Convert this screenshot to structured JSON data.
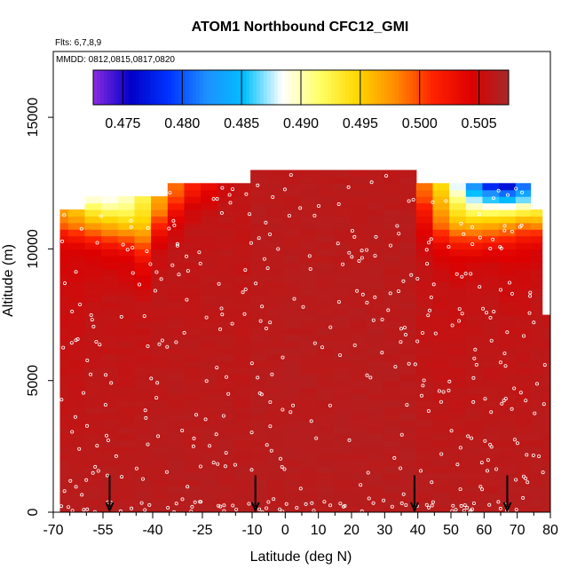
{
  "chart_data": {
    "type": "heatmap",
    "title": "ATOM1 Northbound CFC12_GMI",
    "notes": [
      "Flts: 6,7,8,9",
      "MMDD: 0812,0815,0817,0820"
    ],
    "xlabel": "Latitude (deg N)",
    "ylabel": "Altitude (m)",
    "xlim": [
      -70,
      80
    ],
    "ylim": [
      0,
      17500
    ],
    "x_ticks": [
      -70,
      -55,
      -40,
      -25,
      -10,
      0,
      10,
      20,
      30,
      40,
      50,
      60,
      70,
      80
    ],
    "x_tick_labels": [
      "-70",
      "-55",
      "-40",
      "-25",
      "-10",
      "0",
      "10",
      "20",
      "30",
      "40",
      "50",
      "60",
      "70",
      "80"
    ],
    "x_minor_ticks": [
      -65,
      -60,
      -50,
      -45,
      -35,
      -30,
      -20,
      -15,
      -5,
      5,
      15,
      25,
      35,
      45,
      55,
      65,
      75
    ],
    "y_ticks": [
      0,
      5000,
      10000,
      15000
    ],
    "y_tick_labels": [
      "0",
      "5000",
      "10000",
      "15000"
    ],
    "colorbar": {
      "range": [
        0.4725,
        0.5075
      ],
      "ticks": [
        0.475,
        0.48,
        0.485,
        0.49,
        0.495,
        0.5,
        0.505
      ],
      "tick_labels": [
        "0.475",
        "0.480",
        "0.485",
        "0.490",
        "0.495",
        "0.500",
        "0.505"
      ],
      "colors": [
        "#8a2be2",
        "#0000c8",
        "#0033ff",
        "#1e90ff",
        "#00bfff",
        "#ffffff",
        "#ffff66",
        "#ffd700",
        "#ff8c00",
        "#ff2200",
        "#dd0000",
        "#a52a2a"
      ]
    },
    "background_value": 0.5065,
    "columns": [
      {
        "lat": -68,
        "top": 11500,
        "profile": [
          [
            0,
            0.5065
          ],
          [
            7500,
            0.5055
          ],
          [
            9000,
            0.505
          ],
          [
            10000,
            0.5045
          ],
          [
            10600,
            0.502
          ],
          [
            11000,
            0.4985
          ],
          [
            11500,
            0.497
          ]
        ]
      },
      {
        "lat": -63,
        "top": 11500,
        "profile": [
          [
            0,
            0.5065
          ],
          [
            7500,
            0.5055
          ],
          [
            9200,
            0.505
          ],
          [
            10000,
            0.5045
          ],
          [
            10600,
            0.501
          ],
          [
            11000,
            0.4975
          ],
          [
            11500,
            0.4955
          ]
        ]
      },
      {
        "lat": -58,
        "top": 12000,
        "profile": [
          [
            0,
            0.5065
          ],
          [
            7500,
            0.5058
          ],
          [
            9200,
            0.505
          ],
          [
            10000,
            0.504
          ],
          [
            10500,
            0.5005
          ],
          [
            11000,
            0.4965
          ],
          [
            11500,
            0.4925
          ],
          [
            12000,
            0.4885
          ]
        ]
      },
      {
        "lat": -53,
        "top": 12000,
        "profile": [
          [
            0,
            0.5065
          ],
          [
            8000,
            0.5058
          ],
          [
            9200,
            0.505
          ],
          [
            10000,
            0.5035
          ],
          [
            10500,
            0.4995
          ],
          [
            11000,
            0.4955
          ],
          [
            11500,
            0.4915
          ],
          [
            12000,
            0.488
          ]
        ]
      },
      {
        "lat": -48,
        "top": 12000,
        "profile": [
          [
            0,
            0.5065
          ],
          [
            8000,
            0.5058
          ],
          [
            9500,
            0.5045
          ],
          [
            10000,
            0.503
          ],
          [
            10500,
            0.4985
          ],
          [
            11000,
            0.495
          ],
          [
            11500,
            0.4915
          ],
          [
            12000,
            0.4895
          ]
        ]
      },
      {
        "lat": -43,
        "top": 12000,
        "profile": [
          [
            0,
            0.5065
          ],
          [
            8000,
            0.5058
          ],
          [
            9500,
            0.5035
          ],
          [
            10000,
            0.5005
          ],
          [
            10500,
            0.4975
          ],
          [
            11000,
            0.495
          ],
          [
            11500,
            0.4935
          ],
          [
            12000,
            0.4925
          ]
        ]
      },
      {
        "lat": -38,
        "top": 12000,
        "profile": [
          [
            0,
            0.5065
          ],
          [
            9000,
            0.506
          ],
          [
            10000,
            0.505
          ],
          [
            10500,
            0.5035
          ],
          [
            11000,
            0.5005
          ],
          [
            11500,
            0.498
          ],
          [
            12000,
            0.497
          ]
        ]
      },
      {
        "lat": -33,
        "top": 12500,
        "profile": [
          [
            0,
            0.5065
          ],
          [
            10000,
            0.506
          ],
          [
            11000,
            0.5045
          ],
          [
            11500,
            0.5025
          ],
          [
            12000,
            0.5
          ],
          [
            12500,
            0.4985
          ]
        ]
      },
      {
        "lat": -28,
        "top": 12500,
        "profile": [
          [
            0,
            0.5065
          ],
          [
            10500,
            0.506
          ],
          [
            11500,
            0.505
          ],
          [
            12000,
            0.503
          ],
          [
            12500,
            0.501
          ]
        ]
      },
      {
        "lat": -23,
        "top": 12500,
        "profile": [
          [
            0,
            0.5065
          ],
          [
            11000,
            0.506
          ],
          [
            12000,
            0.5045
          ],
          [
            12500,
            0.503
          ]
        ]
      },
      {
        "lat": -18,
        "top": 12500,
        "profile": [
          [
            0,
            0.5065
          ],
          [
            11500,
            0.506
          ],
          [
            12500,
            0.505
          ]
        ]
      },
      {
        "lat": -13,
        "top": 12500,
        "profile": [
          [
            0,
            0.5065
          ],
          [
            12500,
            0.5058
          ]
        ]
      },
      {
        "lat": -8,
        "top": 13000,
        "profile": [
          [
            0,
            0.5065
          ],
          [
            13000,
            0.5063
          ]
        ]
      },
      {
        "lat": -3,
        "top": 13000,
        "profile": [
          [
            0,
            0.5065
          ],
          [
            13000,
            0.5063
          ]
        ]
      },
      {
        "lat": 2,
        "top": 13000,
        "profile": [
          [
            0,
            0.5065
          ],
          [
            13000,
            0.5063
          ]
        ]
      },
      {
        "lat": 7,
        "top": 13000,
        "profile": [
          [
            0,
            0.5065
          ],
          [
            13000,
            0.5063
          ]
        ]
      },
      {
        "lat": 12,
        "top": 13000,
        "profile": [
          [
            0,
            0.5065
          ],
          [
            13000,
            0.5063
          ]
        ]
      },
      {
        "lat": 17,
        "top": 13000,
        "profile": [
          [
            0,
            0.5065
          ],
          [
            13000,
            0.5063
          ]
        ]
      },
      {
        "lat": 22,
        "top": 13000,
        "profile": [
          [
            0,
            0.5065
          ],
          [
            13000,
            0.5063
          ]
        ]
      },
      {
        "lat": 27,
        "top": 13000,
        "profile": [
          [
            0,
            0.5065
          ],
          [
            13000,
            0.5063
          ]
        ]
      },
      {
        "lat": 32,
        "top": 13000,
        "profile": [
          [
            0,
            0.5065
          ],
          [
            13000,
            0.5063
          ]
        ]
      },
      {
        "lat": 37,
        "top": 13000,
        "profile": [
          [
            0,
            0.5065
          ],
          [
            13000,
            0.5063
          ]
        ]
      },
      {
        "lat": 42,
        "top": 12500,
        "profile": [
          [
            0,
            0.5065
          ],
          [
            9500,
            0.5058
          ],
          [
            10500,
            0.5045
          ],
          [
            11500,
            0.502
          ],
          [
            12000,
            0.4995
          ],
          [
            12500,
            0.4985
          ]
        ]
      },
      {
        "lat": 47,
        "top": 12500,
        "profile": [
          [
            0,
            0.5065
          ],
          [
            9000,
            0.5055
          ],
          [
            10000,
            0.504
          ],
          [
            10500,
            0.5015
          ],
          [
            11000,
            0.4985
          ],
          [
            11500,
            0.497
          ],
          [
            12000,
            0.4955
          ],
          [
            12500,
            0.494
          ]
        ]
      },
      {
        "lat": 52,
        "top": 12500,
        "profile": [
          [
            0,
            0.5065
          ],
          [
            8500,
            0.5055
          ],
          [
            9500,
            0.5045
          ],
          [
            10000,
            0.503
          ],
          [
            10500,
            0.4995
          ],
          [
            11000,
            0.496
          ],
          [
            11500,
            0.4935
          ],
          [
            12000,
            0.4905
          ],
          [
            12500,
            0.4875
          ]
        ]
      },
      {
        "lat": 57,
        "top": 12500,
        "profile": [
          [
            0,
            0.5065
          ],
          [
            8000,
            0.5058
          ],
          [
            9500,
            0.505
          ],
          [
            10000,
            0.503
          ],
          [
            10500,
            0.4995
          ],
          [
            11000,
            0.4955
          ],
          [
            11500,
            0.491
          ],
          [
            12000,
            0.4865
          ],
          [
            12500,
            0.4815
          ]
        ]
      },
      {
        "lat": 62,
        "top": 12500,
        "profile": [
          [
            0,
            0.5065
          ],
          [
            8000,
            0.5058
          ],
          [
            9500,
            0.505
          ],
          [
            10000,
            0.5035
          ],
          [
            10500,
            0.5
          ],
          [
            11000,
            0.496
          ],
          [
            11500,
            0.4905
          ],
          [
            12000,
            0.484
          ],
          [
            12500,
            0.4765
          ]
        ]
      },
      {
        "lat": 67,
        "top": 12500,
        "profile": [
          [
            0,
            0.5065
          ],
          [
            7500,
            0.5058
          ],
          [
            9200,
            0.505
          ],
          [
            10000,
            0.5035
          ],
          [
            10500,
            0.5005
          ],
          [
            11000,
            0.4965
          ],
          [
            11500,
            0.4905
          ],
          [
            12000,
            0.483
          ],
          [
            12500,
            0.4745
          ]
        ]
      },
      {
        "lat": 72,
        "top": 12500,
        "profile": [
          [
            0,
            0.5065
          ],
          [
            7500,
            0.5058
          ],
          [
            9200,
            0.505
          ],
          [
            10000,
            0.504
          ],
          [
            10500,
            0.5015
          ],
          [
            11000,
            0.4975
          ],
          [
            11500,
            0.4915
          ],
          [
            12000,
            0.485
          ],
          [
            12500,
            0.4795
          ]
        ]
      },
      {
        "lat": 76,
        "top": 11500,
        "profile": [
          [
            0,
            0.5065
          ],
          [
            8000,
            0.506
          ],
          [
            9200,
            0.5052
          ],
          [
            10000,
            0.5045
          ],
          [
            10500,
            0.502
          ],
          [
            11000,
            0.497
          ],
          [
            11500,
            0.4925
          ]
        ]
      },
      {
        "lat": 79,
        "top": 7500,
        "profile": [
          [
            0,
            0.5065
          ],
          [
            7500,
            0.506
          ]
        ]
      }
    ],
    "flight_arrows_lat": [
      -53,
      -9,
      39,
      67
    ],
    "sample_points_x_range": [
      -68,
      79
    ],
    "sample_points_y_range": [
      0,
      12900
    ]
  }
}
